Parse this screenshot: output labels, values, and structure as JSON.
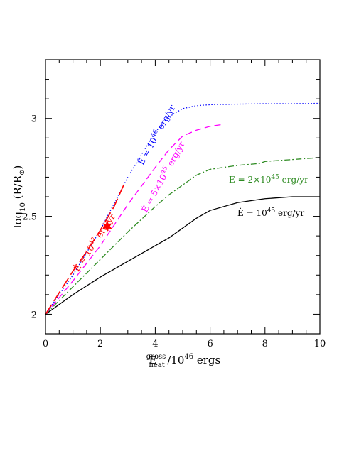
{
  "chart_data": {
    "type": "line",
    "x_axis": {
      "label": "E_heat^gross / 10^46 ergs",
      "label_main": "E",
      "label_sup": "gross",
      "label_sub": "heat",
      "label_rest": "/10",
      "label_exp": "46",
      "label_unit": " ergs",
      "range": [
        0,
        10
      ],
      "ticks": [
        0,
        2,
        4,
        6,
        8,
        10
      ],
      "tick_labels": [
        "0",
        "2",
        "4",
        "6",
        "8",
        "10"
      ]
    },
    "y_axis": {
      "label": "log10 (R/R⊙)",
      "label_main": "log",
      "label_sub": "10",
      "label_rest": " (R/R",
      "label_sun_sub": "⊙",
      "label_close": ")",
      "range": [
        1.9,
        3.3
      ],
      "ticks": [
        2,
        2.5,
        3
      ],
      "tick_labels": [
        "2",
        "2.5",
        "3"
      ]
    },
    "series": [
      {
        "name": "Ė = 10^45 erg/yr",
        "label_text": "Ė = 10",
        "label_exp": "45",
        "label_unit": " erg/yr",
        "color": "#000000",
        "dash": "",
        "x": [
          0,
          1,
          2,
          3,
          4,
          4.5,
          5,
          5.5,
          6,
          7,
          8,
          9,
          10
        ],
        "y": [
          2.0,
          2.1,
          2.19,
          2.27,
          2.35,
          2.39,
          2.44,
          2.49,
          2.53,
          2.57,
          2.59,
          2.6,
          2.6
        ]
      },
      {
        "name": "Ė = 2×10^45 erg/yr",
        "label_text": "Ė = 2×10",
        "label_exp": "45",
        "label_unit": " erg/yr",
        "color": "#2e8b22",
        "dash": "8,3,2,3",
        "x": [
          0,
          1,
          2,
          3,
          4,
          4.5,
          5,
          5.5,
          6,
          7,
          7.8,
          8,
          9,
          10
        ],
        "y": [
          2.0,
          2.14,
          2.28,
          2.42,
          2.55,
          2.61,
          2.66,
          2.71,
          2.74,
          2.76,
          2.77,
          2.78,
          2.79,
          2.8
        ]
      },
      {
        "name": "Ė = 5×10^45 erg/yr",
        "label_text": "Ė = 5×10",
        "label_exp": "45",
        "label_unit": " erg/yr",
        "color": "#ff00ff",
        "dash": "9,5",
        "x": [
          0,
          1,
          2,
          3,
          4,
          4.5,
          5,
          5.5,
          6,
          6.5
        ],
        "y": [
          2.0,
          2.17,
          2.35,
          2.56,
          2.75,
          2.84,
          2.91,
          2.94,
          2.96,
          2.97
        ]
      },
      {
        "name": "Ė = 10^46 erg/yr",
        "label_text": "Ė = 10",
        "label_exp": "46",
        "label_unit": " erg/yr",
        "color": "#0000ff",
        "dash": "1.5,2.5",
        "x": [
          0,
          1,
          2,
          3,
          4,
          4.5,
          5,
          5.5,
          6,
          7,
          8,
          9,
          10
        ],
        "y": [
          2.0,
          2.2,
          2.43,
          2.7,
          2.93,
          3.01,
          3.05,
          3.065,
          3.07,
          3.073,
          3.075,
          3.075,
          3.077
        ]
      },
      {
        "name": "Ė = 10^47 erg/yr",
        "label_text": "Ė = 10",
        "label_exp": "47",
        "label_unit": " erg/yr",
        "color": "#ff0000",
        "dash": "16,6",
        "x": [
          0,
          0.5,
          1,
          1.5,
          2,
          2.5,
          2.85
        ],
        "y": [
          2.0,
          2.11,
          2.22,
          2.32,
          2.43,
          2.55,
          2.66
        ]
      }
    ],
    "markers": [
      {
        "name": "star",
        "x": 2.25,
        "y": 2.45,
        "color": "#ff0000"
      }
    ],
    "grid": false,
    "legend": "inline labels"
  }
}
